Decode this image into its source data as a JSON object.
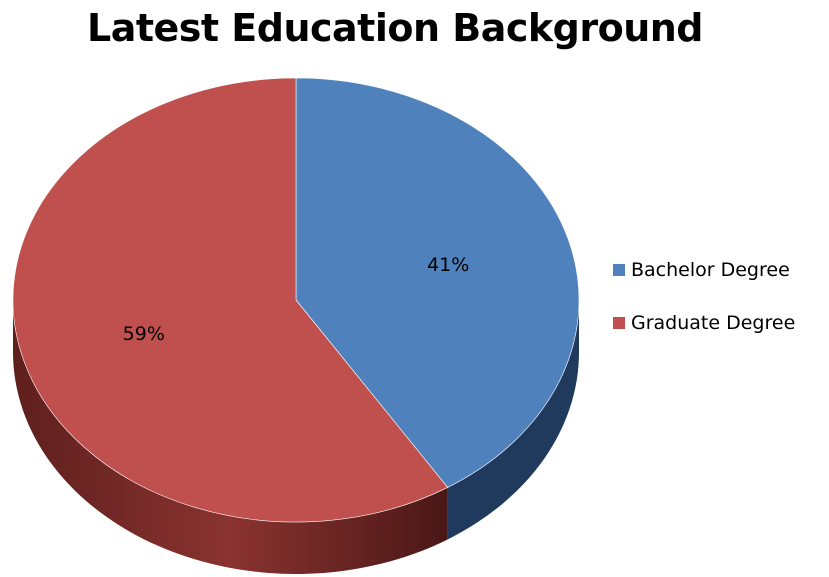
{
  "chart_data": {
    "type": "pie",
    "title": "Latest Education Background",
    "legend_position": "right",
    "slices": [
      {
        "name": "Bachelor Degree",
        "value": 41,
        "label": "41%",
        "color": "#4f81bd",
        "side_color": "#1f3a5c"
      },
      {
        "name": "Graduate Degree",
        "value": 59,
        "label": "59%",
        "color": "#c0504d",
        "side_color": "#5a1f1e"
      }
    ]
  }
}
